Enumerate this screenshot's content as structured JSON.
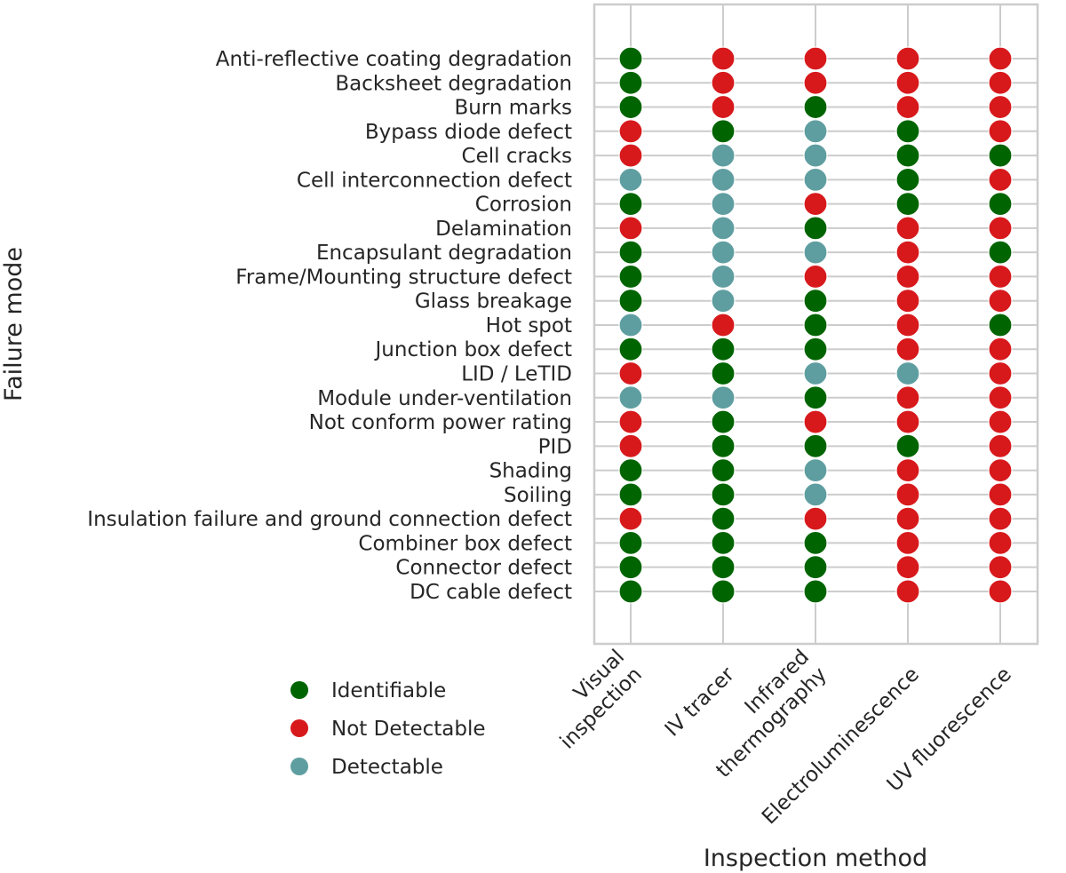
{
  "chart_data": {
    "type": "scatter",
    "title": "",
    "xlabel": "Inspection method",
    "ylabel": "Failure mode",
    "grid": true,
    "legend_placement": "bottom-left",
    "x": [
      [
        "Visual",
        "inspection"
      ],
      [
        "IV tracer"
      ],
      [
        "Infrared",
        "thermography"
      ],
      [
        "Electroluminescence"
      ],
      [
        "UV fluorescence"
      ]
    ],
    "y": [
      "Anti-reflective coating degradation",
      "Backsheet degradation",
      "Burn marks",
      "Bypass diode defect",
      "Cell cracks",
      "Cell interconnection defect",
      "Corrosion",
      "Delamination",
      "Encapsulant degradation",
      "Frame/Mounting structure defect",
      "Glass breakage",
      "Hot spot",
      "Junction box defect",
      "LID / LeTID",
      "Module under-ventilation",
      "Not conform power rating",
      "PID",
      "Shading",
      "Soiling",
      "Insulation failure and ground connection defect",
      "Combiner box defect",
      "Connector defect",
      "DC cable defect"
    ],
    "legend": [
      {
        "key": "I",
        "name": "Identifiable",
        "color": "#006400"
      },
      {
        "key": "N",
        "name": "Not Detectable",
        "color": "#d7191c"
      },
      {
        "key": "D",
        "name": "Detectable",
        "color": "#5f9ea0"
      }
    ],
    "matrix": [
      [
        "I",
        "N",
        "N",
        "N",
        "N"
      ],
      [
        "I",
        "N",
        "N",
        "N",
        "N"
      ],
      [
        "I",
        "N",
        "I",
        "N",
        "N"
      ],
      [
        "N",
        "I",
        "D",
        "I",
        "N"
      ],
      [
        "N",
        "D",
        "D",
        "I",
        "I"
      ],
      [
        "D",
        "D",
        "D",
        "I",
        "N"
      ],
      [
        "I",
        "D",
        "N",
        "I",
        "I"
      ],
      [
        "N",
        "D",
        "I",
        "N",
        "N"
      ],
      [
        "I",
        "D",
        "D",
        "N",
        "I"
      ],
      [
        "I",
        "D",
        "N",
        "N",
        "N"
      ],
      [
        "I",
        "D",
        "I",
        "N",
        "N"
      ],
      [
        "D",
        "N",
        "I",
        "N",
        "I"
      ],
      [
        "I",
        "I",
        "I",
        "N",
        "N"
      ],
      [
        "N",
        "I",
        "D",
        "D",
        "N"
      ],
      [
        "D",
        "D",
        "I",
        "N",
        "N"
      ],
      [
        "N",
        "I",
        "N",
        "N",
        "N"
      ],
      [
        "N",
        "I",
        "I",
        "I",
        "N"
      ],
      [
        "I",
        "I",
        "D",
        "N",
        "N"
      ],
      [
        "I",
        "I",
        "D",
        "N",
        "N"
      ],
      [
        "N",
        "I",
        "N",
        "N",
        "N"
      ],
      [
        "I",
        "I",
        "I",
        "N",
        "N"
      ],
      [
        "I",
        "I",
        "I",
        "N",
        "N"
      ],
      [
        "I",
        "I",
        "I",
        "N",
        "N"
      ]
    ]
  }
}
